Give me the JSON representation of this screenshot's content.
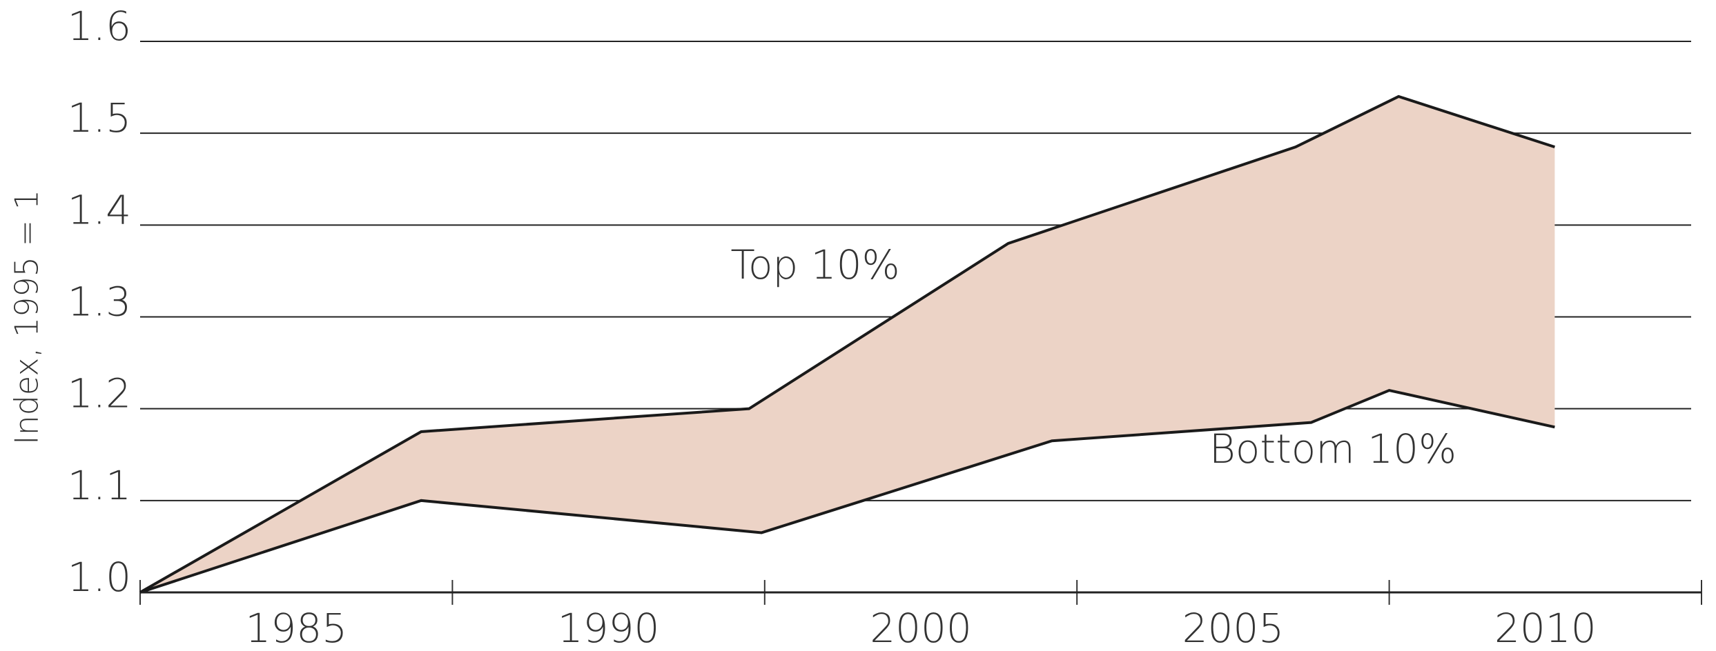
{
  "chart_data": {
    "type": "range_area",
    "y_label": "Index, 1995 = 1",
    "categories": [
      "1985",
      "1990",
      "2000",
      "2005",
      "2010"
    ],
    "xlim": [
      0,
      5
    ],
    "xticks": [
      0,
      1,
      2,
      3,
      4,
      5
    ],
    "ylim": [
      1.0,
      1.6
    ],
    "yticks": [
      {
        "value": 1.0,
        "label": "1.0"
      },
      1.1,
      1.2,
      1.3,
      1.4,
      1.5,
      1.6
    ],
    "grid": true,
    "fill": "#ecd3c6",
    "series": [
      {
        "name": "Top 10%",
        "color": "#1a1a1a",
        "x": [
          0,
          0.9,
          1.95,
          2.78,
          3.7,
          4.03,
          4.53
        ],
        "values": [
          1.0,
          1.175,
          1.2,
          1.38,
          1.485,
          1.54,
          1.485
        ]
      },
      {
        "name": "Bottom 10%",
        "color": "#1a1a1a",
        "x": [
          0,
          0.9,
          1.99,
          2.92,
          3.75,
          4.0,
          4.53
        ],
        "values": [
          1.0,
          1.1,
          1.065,
          1.165,
          1.185,
          1.22,
          1.18
        ]
      }
    ]
  }
}
